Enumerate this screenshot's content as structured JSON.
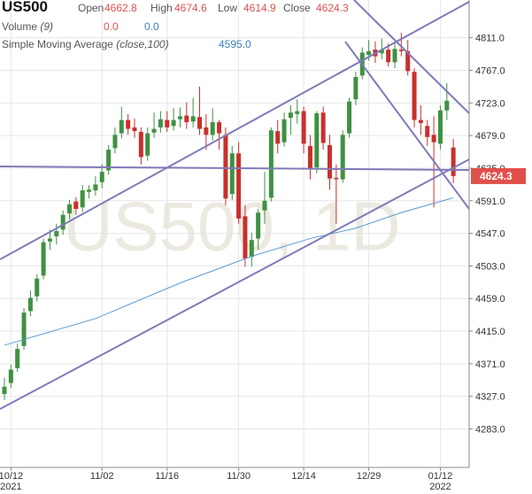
{
  "chart_data": {
    "type": "candlestick",
    "title": "US500",
    "watermark": "US500, 1D",
    "labels": {
      "open": "Open",
      "high": "High",
      "low": "Low",
      "close": "Close"
    },
    "volume": {
      "name": "Volume",
      "params": "(9)",
      "values": [
        "0.0",
        "0.0"
      ]
    },
    "sma": {
      "name": "Simple Moving Average",
      "params": "(close,100)",
      "value_label": "4595.0",
      "color": "#5b9bd5",
      "x": [
        0,
        14,
        27,
        38,
        47,
        54,
        61,
        69
      ],
      "values": [
        4396,
        4432,
        4480,
        4516,
        4540,
        4554,
        4575,
        4595
      ]
    },
    "open": [
      4330,
      4345,
      4365,
      4395,
      4442,
      4462,
      4490,
      4536,
      4543,
      4552,
      4574,
      4590,
      4582,
      4603,
      4605,
      4616,
      4632,
      4662,
      4682,
      4700,
      4690,
      4684,
      4652,
      4683,
      4690,
      4700,
      4692,
      4701,
      4706,
      4698,
      4704,
      4690,
      4680,
      4697,
      4680,
      4600,
      4655,
      4570,
      4515,
      4540,
      4578,
      4595,
      4685,
      4670,
      4703,
      4708,
      4712,
      4665,
      4636,
      4710,
      4666,
      4622,
      4620,
      4682,
      4728,
      4760,
      4788,
      4795,
      4790,
      4795,
      4778,
      4795,
      4793,
      4765,
      4700,
      4692,
      4680,
      4668,
      4713,
      4662.8
    ],
    "high": [
      4352,
      4370,
      4398,
      4446,
      4470,
      4492,
      4540,
      4552,
      4560,
      4578,
      4592,
      4596,
      4612,
      4612,
      4624,
      4640,
      4666,
      4690,
      4718,
      4708,
      4702,
      4690,
      4690,
      4710,
      4712,
      4712,
      4716,
      4717,
      4724,
      4730,
      4745,
      4708,
      4716,
      4700,
      4690,
      4665,
      4670,
      4585,
      4548,
      4580,
      4630,
      4690,
      4700,
      4710,
      4720,
      4728,
      4718,
      4680,
      4712,
      4718,
      4680,
      4640,
      4686,
      4730,
      4765,
      4798,
      4808,
      4806,
      4810,
      4803,
      4805,
      4818,
      4808,
      4770,
      4720,
      4700,
      4705,
      4720,
      4750,
      4674.6
    ],
    "low": [
      4322,
      4338,
      4360,
      4390,
      4435,
      4455,
      4485,
      4525,
      4532,
      4545,
      4566,
      4572,
      4576,
      4594,
      4598,
      4608,
      4626,
      4655,
      4675,
      4680,
      4676,
      4640,
      4645,
      4676,
      4683,
      4684,
      4686,
      4690,
      4688,
      4690,
      4680,
      4660,
      4672,
      4660,
      4585,
      4592,
      4560,
      4502,
      4502,
      4525,
      4560,
      4590,
      4655,
      4664,
      4680,
      4695,
      4655,
      4620,
      4628,
      4660,
      4606,
      4560,
      4615,
      4676,
      4720,
      4755,
      4780,
      4777,
      4782,
      4772,
      4770,
      4786,
      4760,
      4690,
      4680,
      4665,
      4582,
      4660,
      4700,
      4614.9
    ],
    "close": [
      4340,
      4363,
      4391,
      4440,
      4460,
      4486,
      4535,
      4540,
      4550,
      4572,
      4586,
      4580,
      4605,
      4606,
      4613,
      4630,
      4660,
      4680,
      4700,
      4688,
      4685,
      4650,
      4682,
      4688,
      4701,
      4690,
      4700,
      4705,
      4697,
      4705,
      4688,
      4680,
      4697,
      4682,
      4594,
      4655,
      4567,
      4513,
      4538,
      4575,
      4591,
      4686,
      4668,
      4701,
      4710,
      4712,
      4668,
      4634,
      4709,
      4669,
      4621,
      4620,
      4680,
      4725,
      4758,
      4791,
      4793,
      4786,
      4795,
      4778,
      4796,
      4793,
      4766,
      4700,
      4696,
      4677,
      4670,
      4713,
      4726,
      4624.3
    ],
    "up_color": "#3f9142",
    "down_color": "#c9302c",
    "tag_color": "#e0504a",
    "line_color": "#7f7ab8",
    "ylim": [
      4231,
      4862
    ],
    "yticks": [
      {
        "value": 4811,
        "label": "4811.0"
      },
      {
        "value": 4767,
        "label": "4767.0"
      },
      {
        "value": 4723,
        "label": "4723.0"
      },
      {
        "value": 4679,
        "label": "4679.0"
      },
      {
        "value": 4635,
        "label": "4635.0"
      },
      {
        "value": 4591,
        "label": "4591.0"
      },
      {
        "value": 4547,
        "label": "4547.0"
      },
      {
        "value": 4503,
        "label": "4503.0"
      },
      {
        "value": 4459,
        "label": "4459.0"
      },
      {
        "value": 4415,
        "label": "4415.0"
      },
      {
        "value": 4371,
        "label": "4371.0"
      },
      {
        "value": 4327,
        "label": "4327.0"
      },
      {
        "value": 4283,
        "label": "4283.0"
      }
    ],
    "xticks": [
      {
        "value": 1,
        "label": "10/12"
      },
      {
        "value": 15,
        "label": "11/02"
      },
      {
        "value": 25,
        "label": "11/16"
      },
      {
        "value": 36,
        "label": "11/30"
      },
      {
        "value": 46,
        "label": "12/14"
      },
      {
        "value": 56,
        "label": "12/29"
      },
      {
        "value": 67,
        "label": "01/12"
      }
    ],
    "xtick_years": [
      {
        "value": 1,
        "label": "2021"
      },
      {
        "value": 67,
        "label": "2022"
      }
    ],
    "grid": true
  }
}
